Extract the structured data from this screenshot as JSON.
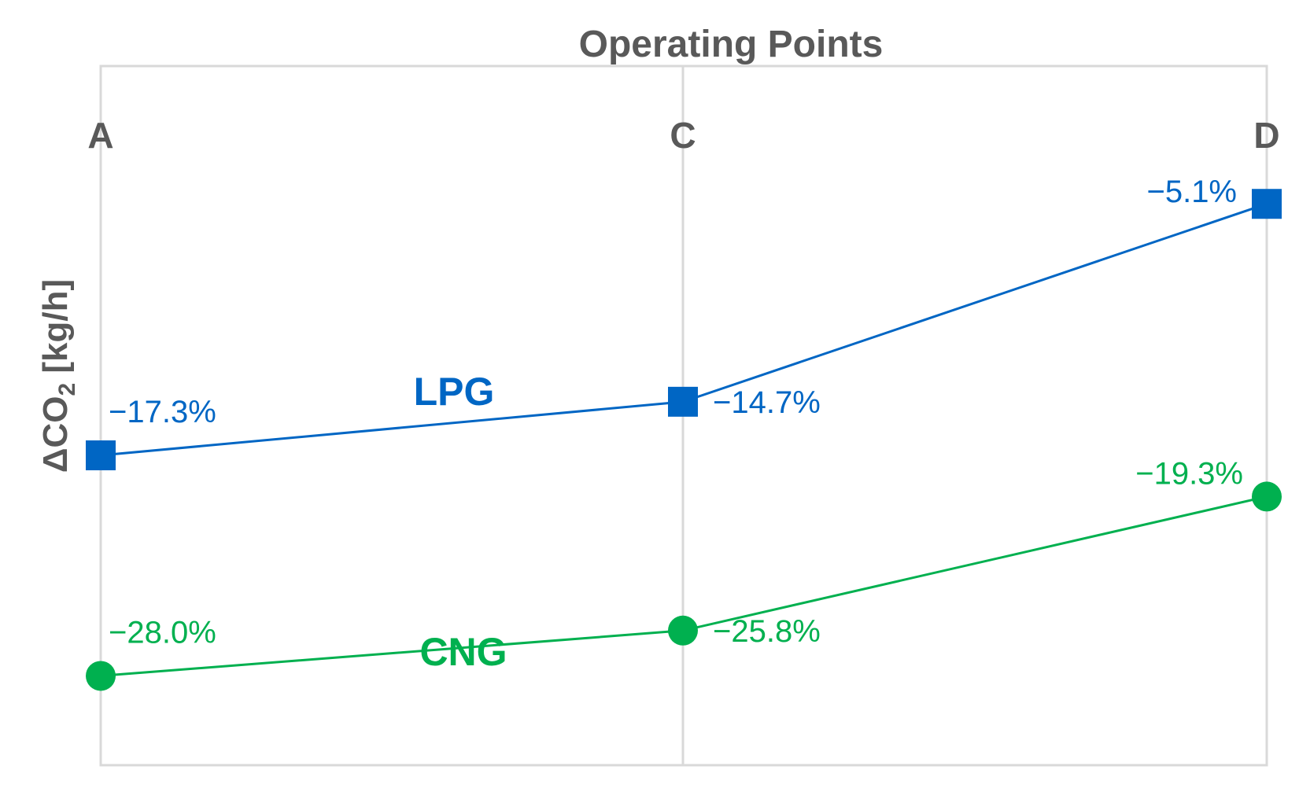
{
  "colors": {
    "lpg": "#0066c4",
    "cng": "#00b04f",
    "text": "#595959",
    "grid": "#d9d9d9"
  },
  "chart_data": {
    "type": "line",
    "title": "Operating Points",
    "xlabel": "",
    "ylabel_main": "ΔCO",
    "ylabel_sub": "2",
    "ylabel_unit": " [kg/h]",
    "categories": [
      "A",
      "C",
      "D"
    ],
    "grid": true,
    "legend": "none (series labeled inline)",
    "ylim": [
      -30,
      0
    ],
    "series": [
      {
        "name": "LPG",
        "marker": "square",
        "color": "#0066c4",
        "values": [
          -17.3,
          -14.7,
          -5.1
        ],
        "labels": [
          "−17.3%",
          "−14.7%",
          "−5.1%"
        ]
      },
      {
        "name": "CNG",
        "marker": "circle",
        "color": "#00b04f",
        "values": [
          -28.0,
          -25.8,
          -19.3
        ],
        "labels": [
          "−28.0%",
          "−25.8%",
          "−19.3%"
        ]
      }
    ]
  }
}
